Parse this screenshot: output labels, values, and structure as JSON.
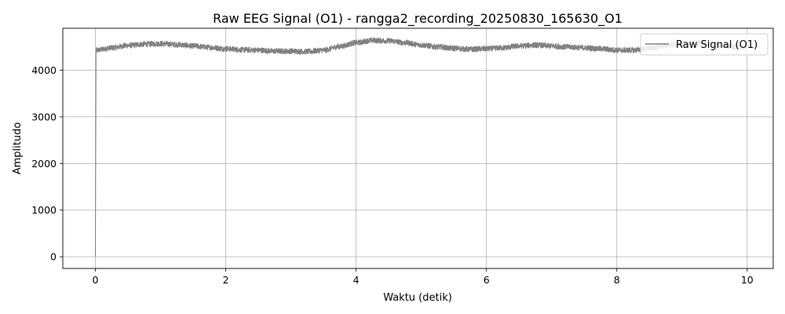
{
  "chart_data": {
    "type": "line",
    "title": "Raw EEG Signal (O1) - rangga2_recording_20250830_165630_O1",
    "xlabel": "Waktu (detik)",
    "ylabel": "Amplitudo",
    "xlim": [
      -0.5,
      10.4
    ],
    "ylim": [
      -250,
      4900
    ],
    "xticks": [
      0,
      2,
      4,
      6,
      8,
      10
    ],
    "yticks": [
      0,
      1000,
      2000,
      3000,
      4000
    ],
    "grid": true,
    "legend_position": "top-right",
    "series": [
      {
        "name": "Raw Signal (O1)",
        "color": "#808080",
        "start_point": {
          "x": 0,
          "y": 0
        },
        "x": [
          0.01,
          0.25,
          0.5,
          0.75,
          1.0,
          1.25,
          1.5,
          1.75,
          2.0,
          2.25,
          2.5,
          2.75,
          3.0,
          3.25,
          3.5,
          3.75,
          4.0,
          4.25,
          4.5,
          4.75,
          5.0,
          5.25,
          5.5,
          5.75,
          6.0,
          6.25,
          6.5,
          6.75,
          7.0,
          7.25,
          7.5,
          7.75,
          8.0,
          8.25,
          8.5,
          8.75,
          9.0,
          9.25,
          9.5,
          9.75,
          10.0
        ],
        "y": [
          4430,
          4480,
          4530,
          4560,
          4570,
          4550,
          4520,
          4490,
          4460,
          4440,
          4430,
          4410,
          4410,
          4400,
          4430,
          4510,
          4590,
          4640,
          4630,
          4590,
          4540,
          4500,
          4470,
          4450,
          4460,
          4480,
          4520,
          4540,
          4520,
          4500,
          4480,
          4460,
          4430,
          4430,
          4470,
          4530,
          4570,
          4580,
          4550,
          4510,
          4480
        ],
        "noise_band": 60
      }
    ]
  }
}
